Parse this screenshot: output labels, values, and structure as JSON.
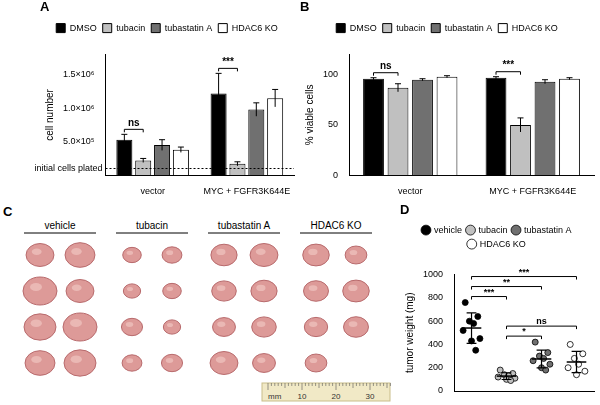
{
  "chart_data": [
    {
      "type": "bar",
      "title": "A",
      "y_label": "cell number",
      "categories": [
        "vector",
        "MYC + FGFR3K644E"
      ],
      "series": [
        {
          "name": "DMSO",
          "color": "#000000",
          "values": [
            530000,
            1220000
          ],
          "errors": [
            80000,
            300000
          ]
        },
        {
          "name": "tubacin",
          "color": "#c0c0c0",
          "values": [
            220000,
            170000
          ],
          "errors": [
            30000,
            30000
          ]
        },
        {
          "name": "tubastatin A",
          "color": "#707070",
          "values": [
            450000,
            980000
          ],
          "errors": [
            80000,
            100000
          ]
        },
        {
          "name": "HDAC6 KO",
          "color": "#ffffff",
          "values": [
            380000,
            1150000
          ],
          "errors": [
            40000,
            130000
          ]
        }
      ],
      "ylim": [
        0,
        1800000
      ],
      "yticks": [
        {
          "value": 500000,
          "label": "5.0×10⁵"
        },
        {
          "value": 1000000,
          "label": "1.0×10⁶"
        },
        {
          "value": 1500000,
          "label": "1.5×10⁶"
        }
      ],
      "legend": "top",
      "grid": false,
      "reference_lines": [
        {
          "value": 100000,
          "label": "initial cells plated",
          "line_style": "dotted"
        }
      ],
      "annotations": [
        {
          "category": "vector",
          "between": [
            "DMSO",
            "tubacin"
          ],
          "label": "ns"
        },
        {
          "category": "MYC + FGFR3K644E",
          "between": [
            "DMSO",
            "tubacin"
          ],
          "label": "***"
        }
      ]
    },
    {
      "type": "bar",
      "title": "B",
      "y_label": "% viable cells",
      "categories": [
        "vector",
        "MYC + FGFR3K644E"
      ],
      "series": [
        {
          "name": "DMSO",
          "color": "#000000",
          "values": [
            96,
            97
          ],
          "errors": [
            1,
            1
          ]
        },
        {
          "name": "tubacin",
          "color": "#c0c0c0",
          "values": [
            87,
            50
          ],
          "errors": [
            4,
            7
          ]
        },
        {
          "name": "tubastatin A",
          "color": "#707070",
          "values": [
            95,
            93
          ],
          "errors": [
            1,
            2
          ]
        },
        {
          "name": "HDAC6 KO",
          "color": "#ffffff",
          "values": [
            98,
            96
          ],
          "errors": [
            1,
            1
          ]
        }
      ],
      "ylim": [
        0,
        120
      ],
      "yticks": [
        0,
        50,
        100
      ],
      "legend": "top",
      "grid": false,
      "annotations": [
        {
          "category": "vector",
          "between": [
            "DMSO",
            "tubacin"
          ],
          "label": "ns"
        },
        {
          "category": "MYC + FGFR3K644E",
          "between": [
            "DMSO",
            "tubacin"
          ],
          "label": "***"
        }
      ]
    },
    {
      "type": "scatter",
      "title": "D",
      "y_label": "tumor weight (mg)",
      "series": [
        {
          "name": "vehicle",
          "color": "#000000",
          "marker": "circle",
          "values": [
            760,
            640,
            600,
            580,
            520,
            450,
            430,
            350
          ],
          "mean": 541,
          "sd": 131
        },
        {
          "name": "tubacin",
          "color": "#c0c0c0",
          "marker": "circle",
          "values": [
            180,
            150,
            140,
            130,
            120,
            110,
            100,
            90
          ],
          "mean": 128,
          "sd": 29
        },
        {
          "name": "tubastatin A",
          "color": "#707070",
          "marker": "circle",
          "values": [
            420,
            330,
            300,
            280,
            260,
            230,
            200,
            180
          ],
          "mean": 275,
          "sd": 77
        },
        {
          "name": "HDAC6 KO",
          "color": "#ffffff",
          "marker": "circle",
          "values": [
            400,
            320,
            280,
            230,
            200,
            170,
            140
          ],
          "mean": 249,
          "sd": 91
        }
      ],
      "ylim": [
        0,
        1000
      ],
      "yticks": [
        0,
        200,
        400,
        600,
        800,
        1000
      ],
      "tick_labels": "y",
      "legend": "top",
      "grid": false,
      "comparisons": [
        {
          "between": [
            "vehicle",
            "tubacin"
          ],
          "label": "***"
        },
        {
          "between": [
            "tubacin",
            "tubastatin A"
          ],
          "label": "*"
        },
        {
          "between": [
            "tubacin",
            "HDAC6 KO"
          ],
          "label": "ns"
        },
        {
          "between": [
            "vehicle",
            "tubastatin A"
          ],
          "label": "**"
        },
        {
          "between": [
            "vehicle",
            "HDAC6 KO"
          ],
          "label": "***"
        }
      ]
    }
  ],
  "photo": {
    "title": "C",
    "groups": [
      "vehicle",
      "tubacin",
      "tubastatin A",
      "HDAC6 KO"
    ],
    "ruler": [
      "mm",
      "10",
      "20",
      "30"
    ]
  }
}
